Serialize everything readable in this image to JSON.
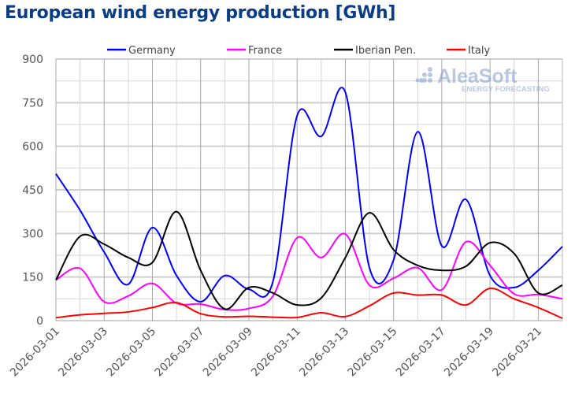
{
  "chart_data": {
    "type": "line",
    "title": "European wind energy production [GWh]",
    "xlabel": "",
    "ylabel": "",
    "ylim": [
      0,
      900
    ],
    "yticks": [
      0,
      150,
      300,
      450,
      600,
      750,
      900
    ],
    "grid": true,
    "legend_position": "top",
    "x": [
      "2026-03-01",
      "2026-03-02",
      "2026-03-03",
      "2026-03-04",
      "2026-03-05",
      "2026-03-06",
      "2026-03-07",
      "2026-03-08",
      "2026-03-09",
      "2026-03-10",
      "2026-03-11",
      "2026-03-12",
      "2026-03-13",
      "2026-03-14",
      "2026-03-15",
      "2026-03-16",
      "2026-03-17",
      "2026-03-18",
      "2026-03-19",
      "2026-03-20",
      "2026-03-21",
      "2026-03-22"
    ],
    "xtick_labels": [
      "2026-03-01",
      "2026-03-03",
      "2026-03-05",
      "2026-03-07",
      "2026-03-09",
      "2026-03-11",
      "2026-03-13",
      "2026-03-15",
      "2026-03-17",
      "2026-03-19",
      "2026-03-21"
    ],
    "series": [
      {
        "name": "Germany",
        "color": "#0000ff",
        "values": [
          505,
          380,
          236,
          125,
          320,
          155,
          65,
          155,
          108,
          135,
          705,
          634,
          786,
          182,
          209,
          650,
          257,
          417,
          155,
          114,
          173,
          255
        ]
      },
      {
        "name": "France",
        "color": "#ff00ff",
        "values": [
          140,
          180,
          65,
          85,
          128,
          60,
          57,
          38,
          42,
          85,
          285,
          217,
          298,
          122,
          146,
          182,
          106,
          271,
          190,
          92,
          90,
          75
        ]
      },
      {
        "name": "Iberian Pen.",
        "color": "#000000",
        "values": [
          140,
          290,
          263,
          217,
          200,
          375,
          173,
          40,
          114,
          95,
          54,
          78,
          217,
          371,
          244,
          190,
          173,
          187,
          268,
          231,
          95,
          122
        ]
      },
      {
        "name": "Italy",
        "color": "#ff0000",
        "values": [
          10,
          20,
          25,
          30,
          45,
          62,
          24,
          13,
          15,
          12,
          11,
          27,
          14,
          51,
          95,
          88,
          88,
          54,
          111,
          75,
          45,
          8
        ]
      }
    ]
  },
  "watermark": {
    "brand": "AleaSoft",
    "tagline": "ENERGY FORECASTING"
  }
}
